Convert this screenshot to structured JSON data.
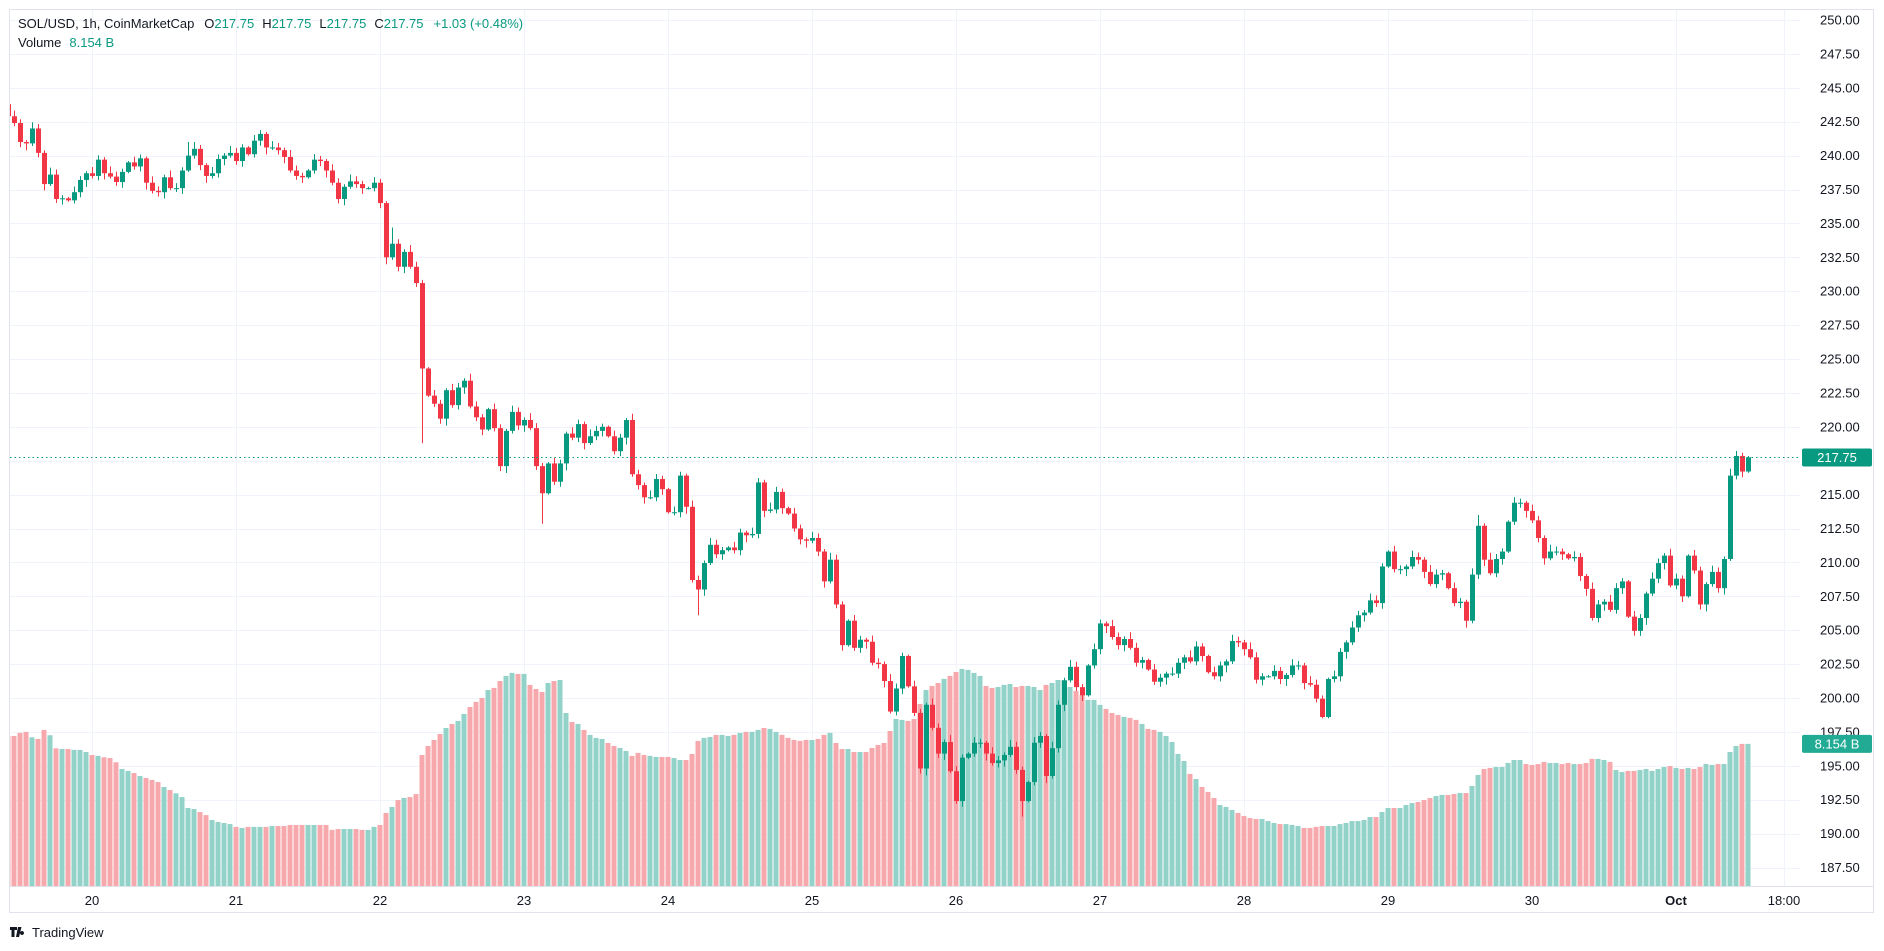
{
  "legend": {
    "symbol": "SOL/USD, 1h, CoinMarketCap",
    "open_label": "O",
    "open": "217.75",
    "high_label": "H",
    "high": "217.75",
    "low_label": "L",
    "low": "217.75",
    "close_label": "C",
    "close": "217.75",
    "change": "+1.03 (+0.48%)",
    "volume_label": "Volume",
    "volume": "8.154 B"
  },
  "branding": {
    "name": "TradingView"
  },
  "colors": {
    "up": "#089981",
    "down": "#F23645",
    "vol_up": "#92D2C8",
    "vol_down": "#F7A8AD",
    "grid": "#F0F3FA",
    "last_price": "#089981",
    "volume_tag": "#22AB94"
  },
  "chart_data": {
    "type": "candlestick",
    "title": "SOL/USD, 1h, CoinMarketCap",
    "interval": "1h",
    "first_open": 243.8,
    "x_tick_labels": [
      "20",
      "21",
      "22",
      "23",
      "24",
      "25",
      "26",
      "27",
      "28",
      "29",
      "30",
      "Oct",
      "18:00"
    ],
    "x_tick_candle_index": [
      14,
      38,
      62,
      86,
      110,
      134,
      158,
      182,
      206,
      230,
      254,
      278,
      296
    ],
    "y_ticks": [
      "250.00",
      "247.50",
      "245.00",
      "242.50",
      "240.00",
      "237.50",
      "235.00",
      "232.50",
      "230.00",
      "227.50",
      "225.00",
      "222.50",
      "220.00",
      "215.00",
      "212.50",
      "210.00",
      "207.50",
      "205.00",
      "202.50",
      "200.00",
      "197.50",
      "195.00",
      "192.50",
      "190.00",
      "187.50"
    ],
    "ylim": [
      187.5,
      250
    ],
    "grid": true,
    "last_price": "217.75",
    "last_volume": "8.154 B",
    "close": [
      242.9,
      242.4,
      241.0,
      240.9,
      242.0,
      240.2,
      237.9,
      238.6,
      236.8,
      236.85,
      236.7,
      237.3,
      238.2,
      238.7,
      238.5,
      239.7,
      238.7,
      238.45,
      238.05,
      238.8,
      239.5,
      239.2,
      239.8,
      238.0,
      237.4,
      237.3,
      238.4,
      237.6,
      237.6,
      238.9,
      240.0,
      240.5,
      239.3,
      238.5,
      238.7,
      239.75,
      240.0,
      240.2,
      239.6,
      240.6,
      240.1,
      241.1,
      241.6,
      240.6,
      240.6,
      240.4,
      239.9,
      238.9,
      238.5,
      238.4,
      238.9,
      239.7,
      239.6,
      238.9,
      238.0,
      236.8,
      237.7,
      238.1,
      237.9,
      237.6,
      237.6,
      238.0,
      236.5,
      232.5,
      233.5,
      231.8,
      232.9,
      231.8,
      230.6,
      224.3,
      222.3,
      221.7,
      220.6,
      222.7,
      221.6,
      222.9,
      223.4,
      221.5,
      220.7,
      219.8,
      221.3,
      219.9,
      217.1,
      219.7,
      221.1,
      220.1,
      220.5,
      219.9,
      217.1,
      215.1,
      217.3,
      215.95,
      217.3,
      219.5,
      219.2,
      220.2,
      218.8,
      219.3,
      219.7,
      220.0,
      219.3,
      218.2,
      219.2,
      220.5,
      216.5,
      215.7,
      214.8,
      214.8,
      216.15,
      215.4,
      213.7,
      213.7,
      216.4,
      214.1,
      208.7,
      208.0,
      209.95,
      211.3,
      210.6,
      210.9,
      211.1,
      210.9,
      212.2,
      212.0,
      212.1,
      215.9,
      213.8,
      213.9,
      215.2,
      214.0,
      213.6,
      212.5,
      211.7,
      211.6,
      211.8,
      210.8,
      208.6,
      210.2,
      206.9,
      203.9,
      205.7,
      203.7,
      204.3,
      204.15,
      202.6,
      202.5,
      201.25,
      199.0,
      200.7,
      203.1,
      200.86,
      198.9,
      194.8,
      199.5,
      197.8,
      195.9,
      196.75,
      194.6,
      192.4,
      195.6,
      195.9,
      196.7,
      196.7,
      195.9,
      195.2,
      195.4,
      195.8,
      196.4,
      194.7,
      192.4,
      193.8,
      196.7,
      197.2,
      194.25,
      196.3,
      199.5,
      201.3,
      202.3,
      200.8,
      200.2,
      202.4,
      203.6,
      205.5,
      205.3,
      204.5,
      203.9,
      204.35,
      203.7,
      202.6,
      202.8,
      202.1,
      201.2,
      201.5,
      201.8,
      201.8,
      202.6,
      203.0,
      202.7,
      203.8,
      203.1,
      201.9,
      201.6,
      202.4,
      202.7,
      204.2,
      204.1,
      203.6,
      203.0,
      201.35,
      201.6,
      201.6,
      202.0,
      201.4,
      201.7,
      202.4,
      202.4,
      201.1,
      200.98,
      199.95,
      198.6,
      201.4,
      201.6,
      203.4,
      204.1,
      205.2,
      206.1,
      206.3,
      207.2,
      207.0,
      209.7,
      210.8,
      209.5,
      209.5,
      209.7,
      210.4,
      210.2,
      209.3,
      208.4,
      209.1,
      209.2,
      208.1,
      207.0,
      207.1,
      205.7,
      209.1,
      212.7,
      210.2,
      209.2,
      210.25,
      210.8,
      213.0,
      214.4,
      214.4,
      213.8,
      213.1,
      211.8,
      210.3,
      210.8,
      210.8,
      210.6,
      210.3,
      210.4,
      209.0,
      208.05,
      205.9,
      206.9,
      207.1,
      206.5,
      208.1,
      208.6,
      206.0,
      204.95,
      205.9,
      207.7,
      208.8,
      209.95,
      210.5,
      208.3,
      208.8,
      207.5,
      210.5,
      209.4,
      206.9,
      208.4,
      209.3,
      208.1,
      210.25,
      216.4,
      217.85,
      216.7,
      217.75
    ],
    "wick_extremes": [
      {
        "i": 30,
        "high": 241.0
      },
      {
        "i": 31,
        "high": 241.0
      },
      {
        "i": 64,
        "high": 234.7
      },
      {
        "i": 69,
        "low": 218.8
      },
      {
        "i": 89,
        "low": 212.85
      },
      {
        "i": 115,
        "low": 206.1
      },
      {
        "i": 158,
        "low": 192.2
      },
      {
        "i": 169,
        "low": 191.25
      },
      {
        "i": 219,
        "low": 198.5
      },
      {
        "i": 245,
        "high": 213.5
      },
      {
        "i": 252,
        "high": 214.7
      },
      {
        "i": 271,
        "low": 204.6
      }
    ],
    "volume_unit": "B",
    "volume": [
      8.61,
      8.61,
      8.78,
      8.84,
      8.53,
      8.44,
      8.95,
      8.65,
      7.91,
      7.87,
      7.87,
      7.82,
      7.82,
      7.7,
      7.53,
      7.48,
      7.4,
      7.36,
      7.12,
      6.74,
      6.63,
      6.51,
      6.34,
      6.23,
      6.12,
      6.0,
      5.72,
      5.55,
      5.36,
      5.15,
      4.53,
      4.47,
      4.3,
      4.13,
      3.85,
      3.74,
      3.68,
      3.62,
      3.46,
      3.4,
      3.46,
      3.46,
      3.46,
      3.46,
      3.51,
      3.51,
      3.51,
      3.57,
      3.57,
      3.57,
      3.57,
      3.57,
      3.57,
      3.57,
      3.29,
      3.34,
      3.34,
      3.34,
      3.34,
      3.29,
      3.29,
      3.46,
      3.57,
      4.25,
      4.59,
      4.98,
      5.1,
      5.15,
      5.32,
      7.53,
      8.04,
      8.38,
      8.72,
      9.06,
      9.29,
      9.46,
      9.86,
      10.25,
      10.54,
      10.76,
      11.21,
      11.33,
      11.72,
      12.01,
      12.18,
      12.12,
      12.12,
      11.5,
      11.27,
      11.1,
      11.61,
      11.72,
      11.78,
      9.91,
      9.4,
      9.29,
      8.95,
      8.67,
      8.5,
      8.44,
      8.21,
      8.04,
      7.93,
      7.76,
      7.48,
      7.65,
      7.53,
      7.48,
      7.42,
      7.42,
      7.42,
      7.36,
      7.25,
      7.25,
      7.59,
      8.33,
      8.5,
      8.55,
      8.67,
      8.67,
      8.61,
      8.67,
      8.78,
      8.84,
      8.84,
      8.95,
      9.06,
      9.01,
      8.84,
      8.67,
      8.5,
      8.38,
      8.33,
      8.38,
      8.38,
      8.44,
      8.67,
      8.78,
      8.21,
      7.87,
      7.87,
      7.7,
      7.7,
      7.7,
      7.93,
      8.1,
      8.21,
      8.89,
      9.57,
      9.52,
      9.46,
      9.57,
      10.42,
      11.21,
      11.44,
      11.61,
      11.84,
      12.01,
      12.23,
      12.4,
      12.35,
      12.18,
      12.01,
      11.44,
      11.33,
      11.38,
      11.5,
      11.55,
      11.38,
      11.44,
      11.44,
      11.38,
      11.21,
      11.5,
      11.61,
      11.78,
      11.78,
      11.38,
      11.16,
      10.93,
      10.65,
      10.65,
      10.37,
      10.14,
      9.91,
      9.8,
      9.69,
      9.63,
      9.52,
      9.29,
      9.01,
      8.95,
      8.84,
      8.61,
      8.27,
      7.59,
      7.19,
      6.46,
      6.17,
      5.72,
      5.44,
      5.1,
      4.7,
      4.59,
      4.42,
      4.25,
      4.08,
      3.96,
      3.91,
      3.91,
      3.79,
      3.68,
      3.62,
      3.62,
      3.57,
      3.51,
      3.4,
      3.4,
      3.46,
      3.51,
      3.51,
      3.51,
      3.62,
      3.68,
      3.79,
      3.79,
      3.85,
      4.02,
      4.02,
      4.3,
      4.53,
      4.53,
      4.53,
      4.7,
      4.81,
      4.87,
      4.98,
      5.1,
      5.21,
      5.27,
      5.27,
      5.32,
      5.38,
      5.38,
      5.78,
      6.4,
      6.74,
      6.8,
      6.85,
      6.85,
      7.08,
      7.25,
      7.25,
      7.02,
      6.97,
      7.02,
      7.14,
      7.08,
      7.08,
      7.02,
      7.08,
      7.02,
      7.02,
      7.08,
      7.31,
      7.31,
      7.25,
      7.14,
      6.68,
      6.57,
      6.63,
      6.63,
      6.68,
      6.74,
      6.63,
      6.74,
      6.85,
      6.91,
      6.8,
      6.74,
      6.8,
      6.74,
      6.85,
      7.02,
      6.97,
      7.02,
      7.02,
      7.7,
      8.04,
      8.16,
      8.16
    ]
  }
}
